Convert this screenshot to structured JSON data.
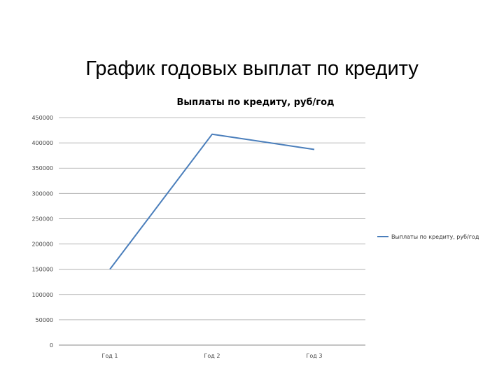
{
  "slide": {
    "title": "График годовых выплат по кредиту"
  },
  "chart_data": {
    "type": "line",
    "title": "Выплаты по кредиту, руб/год",
    "xlabel": "",
    "ylabel": "",
    "categories": [
      "Год 1",
      "Год 2",
      "Год 3"
    ],
    "series": [
      {
        "name": "Выплаты по кредиту, руб/год",
        "values": [
          150000,
          417000,
          387000
        ],
        "color": "#4a7ebb"
      }
    ],
    "ylim": [
      0,
      450000
    ],
    "yticks": [
      0,
      50000,
      100000,
      150000,
      200000,
      250000,
      300000,
      350000,
      400000,
      450000
    ],
    "grid": true,
    "legend_position": "right"
  }
}
